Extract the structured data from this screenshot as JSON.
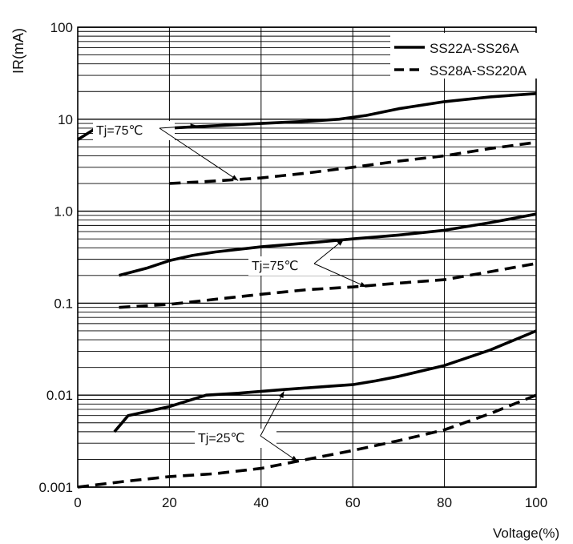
{
  "chart_data": {
    "type": "line",
    "title": "",
    "xlabel": "Voltage(%)",
    "ylabel": "IR(mA)",
    "x_scale": "linear",
    "y_scale": "log",
    "xlim": [
      0,
      100
    ],
    "ylim": [
      0.001,
      100
    ],
    "x_ticks": [
      "0",
      "20",
      "40",
      "60",
      "80",
      "100"
    ],
    "y_ticks": [
      "0.001",
      "0.01",
      "0.1",
      "1.0",
      "10",
      "100"
    ],
    "grid": true,
    "legend_position": "top-right",
    "legend": [
      {
        "label": "SS22A-SS26A",
        "style": "solid"
      },
      {
        "label": "SS28A-SS220A",
        "style": "dashed"
      }
    ],
    "series": [
      {
        "name": "SS22A-SS26A",
        "group": "Tj=75℃ (upper)",
        "style": "solid",
        "x": [
          0,
          4,
          10,
          20,
          30,
          40,
          50,
          57,
          63,
          70,
          80,
          90,
          100
        ],
        "y": [
          6,
          8,
          8,
          8,
          8.5,
          9,
          9.5,
          10,
          11,
          13,
          15.5,
          17.5,
          19
        ]
      },
      {
        "name": "SS28A-SS220A",
        "group": "Tj=75℃ (upper)",
        "style": "dashed",
        "x": [
          20,
          28,
          40,
          50,
          60,
          70,
          80,
          90,
          100
        ],
        "y": [
          2.0,
          2.1,
          2.3,
          2.6,
          3.0,
          3.5,
          4.0,
          4.8,
          5.6
        ]
      },
      {
        "name": "SS22A-SS26A",
        "group": "Tj=75℃ (middle)",
        "style": "solid",
        "x": [
          9,
          15,
          20,
          25,
          30,
          40,
          50,
          60,
          70,
          80,
          90,
          100
        ],
        "y": [
          0.2,
          0.24,
          0.29,
          0.33,
          0.36,
          0.41,
          0.45,
          0.5,
          0.55,
          0.62,
          0.75,
          0.93
        ]
      },
      {
        "name": "SS28A-SS220A",
        "group": "Tj=75℃ (middle)",
        "style": "dashed",
        "x": [
          9,
          20,
          30,
          40,
          50,
          60,
          70,
          80,
          90,
          100
        ],
        "y": [
          0.09,
          0.097,
          0.11,
          0.125,
          0.14,
          0.15,
          0.165,
          0.18,
          0.22,
          0.27
        ]
      },
      {
        "name": "SS22A-SS26A",
        "group": "Tj=25℃",
        "style": "solid",
        "x": [
          8,
          11,
          20,
          28,
          35,
          45,
          55,
          60,
          65,
          70,
          80,
          90,
          100
        ],
        "y": [
          0.004,
          0.006,
          0.0075,
          0.01,
          0.0105,
          0.0115,
          0.0125,
          0.013,
          0.0143,
          0.016,
          0.021,
          0.031,
          0.05
        ]
      },
      {
        "name": "SS28A-SS220A",
        "group": "Tj=25℃",
        "style": "dashed",
        "x": [
          0,
          10,
          20,
          30,
          40,
          50,
          60,
          70,
          80,
          90,
          100
        ],
        "y": [
          0.001,
          0.00115,
          0.0013,
          0.0014,
          0.0016,
          0.002,
          0.0025,
          0.0032,
          0.0042,
          0.0063,
          0.01
        ]
      }
    ],
    "annotations": [
      {
        "text": "Tj=75℃",
        "targets": [
          [
            26,
            8.5
          ],
          [
            35,
            2.15
          ]
        ]
      },
      {
        "text": "Tj=75℃",
        "targets": [
          [
            58,
            0.49
          ],
          [
            63,
            0.15
          ]
        ]
      },
      {
        "text": "Tj=25℃",
        "targets": [
          [
            45,
            0.011
          ],
          [
            48,
            0.0019
          ]
        ]
      }
    ]
  }
}
